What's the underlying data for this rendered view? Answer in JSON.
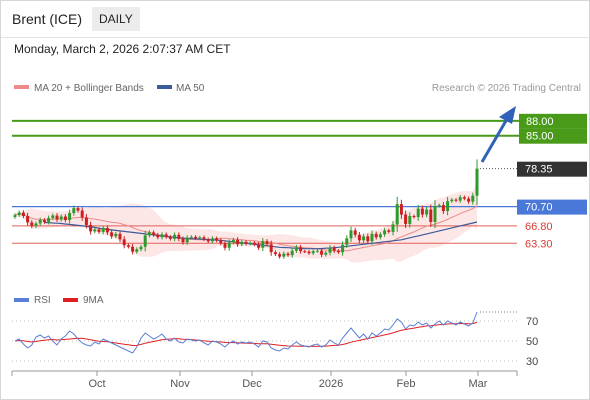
{
  "header": {
    "instrument": "Brent (ICE)",
    "timeframe": "DAILY",
    "datetime": "Monday, March 2, 2026 2:07:37 AM CET"
  },
  "legend": {
    "ma20": "MA 20 + Bollinger Bands",
    "ma50": "MA 50",
    "credit": "Research © 2026 Trading Central",
    "rsi": "RSI",
    "rsi_ma": "9MA"
  },
  "colors": {
    "ma20": "#ee8a8a",
    "ma50": "#3b5b9a",
    "bands": "#fbdede",
    "resistance": "#4a9a1a",
    "support": "#e0605a",
    "pivot": "#4a78d8",
    "last": "#333333",
    "rsi": "#5b7fd6",
    "rsi_ma": "#e02020",
    "candle_up": "#2e9a2e",
    "candle_down": "#cc2020"
  },
  "chart_data": [
    {
      "type": "candlestick",
      "ylim": [
        56.5,
        92
      ],
      "x_tick_labels": [
        "Oct",
        "Nov",
        "Dec",
        "2026",
        "Feb",
        "Mar"
      ],
      "levels": [
        {
          "label": "88.00",
          "value": 88.0,
          "kind": "resistance"
        },
        {
          "label": "85.00",
          "value": 85.0,
          "kind": "resistance"
        },
        {
          "label": "78.35",
          "value": 78.35,
          "kind": "last"
        },
        {
          "label": "70.70",
          "value": 70.7,
          "kind": "pivot"
        },
        {
          "label": "66.80",
          "value": 66.8,
          "kind": "support"
        },
        {
          "label": "63.30",
          "value": 63.3,
          "kind": "support"
        }
      ],
      "closes": [
        69.0,
        69.5,
        68.8,
        67.5,
        66.8,
        67.3,
        68.0,
        67.6,
        68.4,
        68.9,
        68.1,
        68.7,
        68.0,
        69.4,
        70.4,
        69.9,
        68.5,
        67.0,
        65.7,
        66.1,
        65.6,
        66.4,
        65.5,
        64.7,
        65.2,
        64.1,
        62.9,
        62.6,
        61.6,
        62.1,
        62.6,
        64.9,
        65.5,
        65.0,
        64.5,
        65.1,
        64.6,
        64.2,
        65.0,
        64.2,
        63.5,
        64.4,
        64.6,
        64.3,
        64.5,
        64.1,
        63.7,
        64.3,
        63.9,
        63.3,
        62.4,
        63.5,
        64.0,
        63.1,
        63.6,
        63.2,
        63.4,
        63.1,
        62.4,
        63.7,
        63.1,
        61.5,
        61.1,
        60.6,
        61.2,
        60.9,
        61.8,
        62.5,
        61.7,
        61.6,
        61.3,
        61.7,
        61.8,
        61.0,
        61.4,
        62.4,
        61.8,
        61.5,
        63.0,
        64.3,
        65.9,
        65.0,
        63.9,
        64.7,
        63.7,
        65.2,
        64.5,
        65.1,
        65.9,
        65.6,
        67.1,
        71.2,
        69.1,
        67.2,
        68.8,
        68.6,
        70.3,
        69.1,
        70.1,
        67.6,
        70.8,
        71.0,
        69.8,
        71.8,
        72.1,
        71.9,
        72.6,
        72.3,
        71.7,
        72.9,
        78.35
      ],
      "ma50": [
        67.5,
        67.45,
        67.4,
        67.35,
        67.3,
        67.2,
        67.1,
        67.0,
        66.9,
        66.8,
        66.7,
        66.6,
        66.5,
        66.35,
        66.2,
        66.1,
        66.0,
        65.9,
        65.8,
        65.7,
        65.6,
        65.5,
        65.4,
        65.3,
        65.2,
        65.1,
        65.0,
        64.9,
        64.8,
        64.7,
        64.6,
        64.5,
        64.4,
        64.35,
        64.3,
        64.25,
        64.2,
        64.15,
        64.1,
        64.05,
        64.0,
        63.95,
        63.9,
        63.8,
        63.7,
        63.6,
        63.5,
        63.4,
        63.3,
        63.2,
        63.1,
        63.0,
        62.9,
        62.8,
        62.7,
        62.6,
        62.5,
        62.45,
        62.4,
        62.35,
        62.3,
        62.25,
        62.2,
        62.2,
        62.2,
        62.2,
        62.25,
        62.3,
        62.35,
        62.4,
        62.5,
        62.6,
        62.7,
        62.8,
        62.9,
        63.0,
        63.1,
        63.2,
        63.3,
        63.4,
        63.5,
        63.6,
        63.7,
        63.8,
        63.9,
        64.0,
        64.2,
        64.4,
        64.6,
        64.8,
        65.0,
        65.2,
        65.4,
        65.6,
        65.8,
        66.0,
        66.2,
        66.4,
        66.6,
        66.8,
        67.0,
        67.2,
        67.4,
        67.6
      ]
    },
    {
      "type": "line",
      "name": "RSI",
      "ylim": [
        22,
        82
      ],
      "y_tick_labels": [
        "70",
        "50",
        "30"
      ],
      "y_ticks": [
        70,
        50,
        30
      ],
      "rsi": [
        50,
        52,
        47,
        43,
        46,
        54,
        56,
        53,
        55,
        50,
        46,
        52,
        55,
        60,
        57,
        52,
        48,
        46,
        45,
        49,
        47,
        52,
        50,
        48,
        46,
        44,
        42,
        40,
        38,
        44,
        53,
        58,
        55,
        52,
        54,
        57,
        52,
        50,
        53,
        49,
        48,
        52,
        51,
        50,
        51,
        48,
        46,
        50,
        49,
        47,
        44,
        48,
        50,
        47,
        49,
        48,
        49,
        47,
        44,
        50,
        49,
        43,
        41,
        40,
        43,
        42,
        46,
        49,
        46,
        45,
        44,
        46,
        47,
        44,
        46,
        51,
        48,
        46,
        53,
        58,
        63,
        58,
        53,
        57,
        52,
        58,
        55,
        58,
        62,
        61,
        66,
        72,
        69,
        62,
        66,
        65,
        69,
        66,
        68,
        63,
        67,
        70,
        66,
        70,
        68,
        66,
        69,
        67,
        65,
        68,
        79
      ],
      "rsi_ma": [
        50,
        50.5,
        50.2,
        49.5,
        49.0,
        49.5,
        50.2,
        50.8,
        51.2,
        51.5,
        51.0,
        51.2,
        51.6,
        52.0,
        52.4,
        52.8,
        52.6,
        52.0,
        51.3,
        50.5,
        49.8,
        49.5,
        49.2,
        48.6,
        48.0,
        47.4,
        46.8,
        46.2,
        45.5,
        45.6,
        46.6,
        47.8,
        48.7,
        49.5,
        50.4,
        51.3,
        51.8,
        52.0,
        52.4,
        52.2,
        51.8,
        51.6,
        51.4,
        51.0,
        50.6,
        50.1,
        49.7,
        49.5,
        49.3,
        49.0,
        48.6,
        48.4,
        48.4,
        48.2,
        48.0,
        47.8,
        47.8,
        47.6,
        47.3,
        47.3,
        47.2,
        46.8,
        46.3,
        45.8,
        45.4,
        45.0,
        44.9,
        44.9,
        44.8,
        44.7,
        44.6,
        44.6,
        44.7,
        44.8,
        44.9,
        45.3,
        45.6,
        45.8,
        46.5,
        47.5,
        48.8,
        49.8,
        50.6,
        51.6,
        52.4,
        53.4,
        54.2,
        55.1,
        56.1,
        57.0,
        58.1,
        59.5,
        60.8,
        61.4,
        62.2,
        62.9,
        63.7,
        64.3,
        65.1,
        65.3,
        65.8,
        66.4,
        66.5,
        67.0,
        67.3,
        67.3,
        67.5,
        67.4,
        67.3,
        67.4,
        68.6
      ]
    }
  ]
}
